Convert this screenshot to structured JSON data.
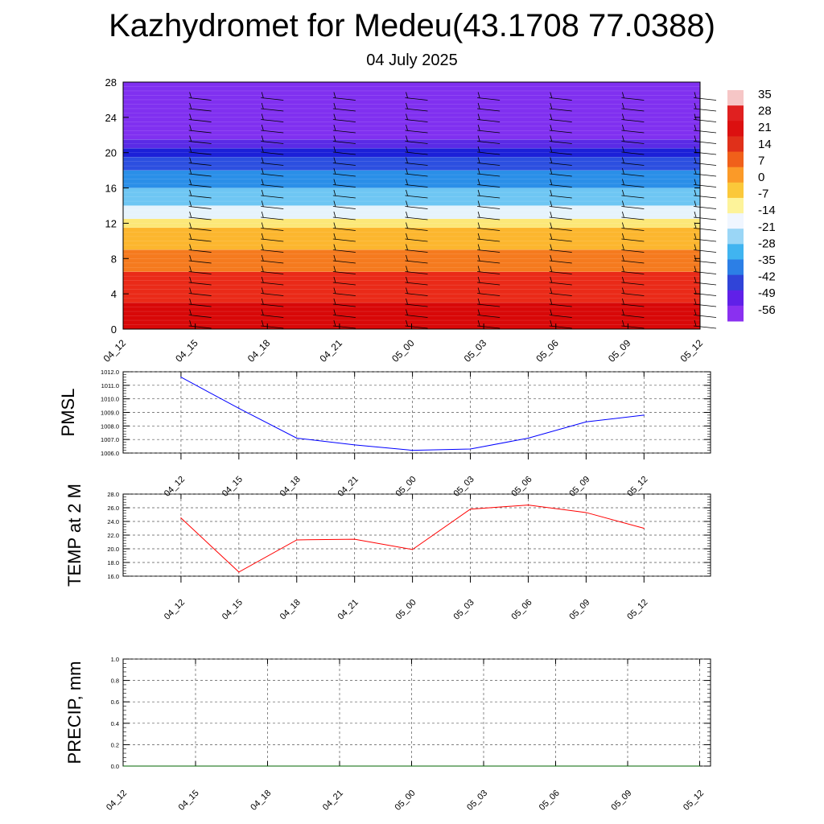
{
  "title": "Kazhydromet for Medeu(43.1708 77.0388)",
  "subtitle": "04 July 2025",
  "chart_data": [
    {
      "type": "heatmap",
      "name": "vertical-profile",
      "x_ticks": [
        "04_12",
        "04_15",
        "04_18",
        "04_21",
        "05_00",
        "05_03",
        "05_06",
        "05_09",
        "05_12"
      ],
      "y_ticks": [
        0,
        4,
        8,
        12,
        16,
        20,
        24,
        28
      ],
      "ylim": [
        0,
        28
      ],
      "colorbar_labels": [
        "35",
        "28",
        "21",
        "14",
        "7",
        "0",
        "-7",
        "-14",
        "-21",
        "-28",
        "-35",
        "-42",
        "-49",
        "-56"
      ],
      "colorbar_colors": [
        "#f6c6c6",
        "#e02020",
        "#dc1010",
        "#e0301a",
        "#f0601a",
        "#fb9a28",
        "#fbc83a",
        "#fdf39a",
        "#f0f6ff",
        "#9ad6f6",
        "#40b4f0",
        "#2c7fe6",
        "#3044d8",
        "#6020e8",
        "#8a30f0"
      ],
      "layers": [
        {
          "from": 0,
          "to": 3,
          "color": "#d80808"
        },
        {
          "from": 3,
          "to": 6.5,
          "color": "#ea2a18"
        },
        {
          "from": 6.5,
          "to": 9,
          "color": "#f57a1e"
        },
        {
          "from": 9,
          "to": 11.5,
          "color": "#fcb62e"
        },
        {
          "from": 11.5,
          "to": 12.5,
          "color": "#fce878"
        },
        {
          "from": 12.5,
          "to": 14,
          "color": "#e6f3fc"
        },
        {
          "from": 14,
          "to": 16,
          "color": "#6ec6f3"
        },
        {
          "from": 16,
          "to": 18,
          "color": "#2a8fe8"
        },
        {
          "from": 18,
          "to": 19.5,
          "color": "#2c4fe0"
        },
        {
          "from": 19.5,
          "to": 20.5,
          "color": "#1c20d8"
        },
        {
          "from": 20.5,
          "to": 21.5,
          "color": "#5a2ae6"
        },
        {
          "from": 21.5,
          "to": 28,
          "color": "#8030f0"
        }
      ],
      "wind_columns": [
        "04_15",
        "04_18",
        "04_21",
        "05_00",
        "05_03",
        "05_06",
        "05_09",
        "05_12"
      ]
    },
    {
      "type": "line",
      "name": "pmsl",
      "ylabel": "PMSL",
      "categories": [
        "04_12",
        "04_15",
        "04_18",
        "04_21",
        "05_00",
        "05_03",
        "05_06",
        "05_09",
        "05_12"
      ],
      "values": [
        1011.6,
        1009.3,
        1007.1,
        1006.6,
        1006.2,
        1006.3,
        1007.1,
        1008.3,
        1008.8
      ],
      "ylim": [
        1006.0,
        1012.0
      ],
      "y_ticks": [
        "1006.0",
        "1007.0",
        "1008.0",
        "1009.0",
        "1010.0",
        "1011.0",
        "1012.0"
      ],
      "color": "#0000ff"
    },
    {
      "type": "line",
      "name": "temp",
      "ylabel": "TEMP at 2 M",
      "categories": [
        "04_12",
        "04_15",
        "04_18",
        "04_21",
        "05_00",
        "05_03",
        "05_06",
        "05_09",
        "05_12"
      ],
      "values": [
        24.5,
        16.6,
        21.3,
        21.4,
        19.9,
        25.8,
        26.4,
        25.3,
        23.0
      ],
      "ylim": [
        16.0,
        28.0
      ],
      "y_ticks": [
        "16.0",
        "18.0",
        "20.0",
        "22.0",
        "24.0",
        "26.0",
        "28.0"
      ],
      "color": "#ff0000"
    },
    {
      "type": "line",
      "name": "precip",
      "ylabel": "PRECIP, mm",
      "x_ticks": [
        "04_12",
        "04_15",
        "04_18",
        "04_21",
        "05_00",
        "05_03",
        "05_06",
        "05_09",
        "05_12"
      ],
      "values": [
        0,
        0,
        0,
        0,
        0,
        0,
        0,
        0,
        0
      ],
      "ylim": [
        0.0,
        1.0
      ],
      "y_ticks": [
        "0.0",
        "0.2",
        "0.4",
        "0.6",
        "0.8",
        "1.0"
      ],
      "color": "#006400"
    }
  ]
}
